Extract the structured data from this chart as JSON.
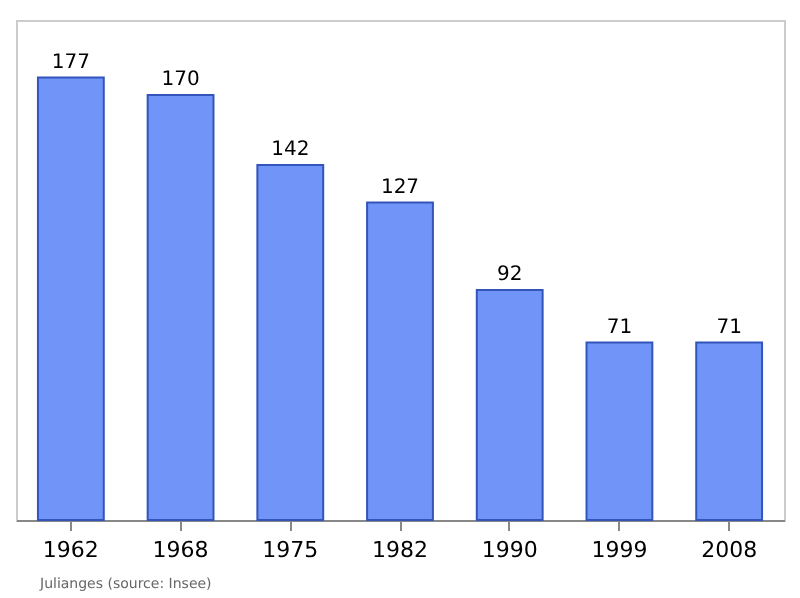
{
  "chart_data": {
    "type": "bar",
    "categories": [
      "1962",
      "1968",
      "1975",
      "1982",
      "1990",
      "1999",
      "2008"
    ],
    "values": [
      177,
      170,
      142,
      127,
      92,
      71,
      71
    ],
    "color": "#7094f7",
    "data_labels": true,
    "annotations": [
      "Julianges    (source: Insee)"
    ]
  }
}
